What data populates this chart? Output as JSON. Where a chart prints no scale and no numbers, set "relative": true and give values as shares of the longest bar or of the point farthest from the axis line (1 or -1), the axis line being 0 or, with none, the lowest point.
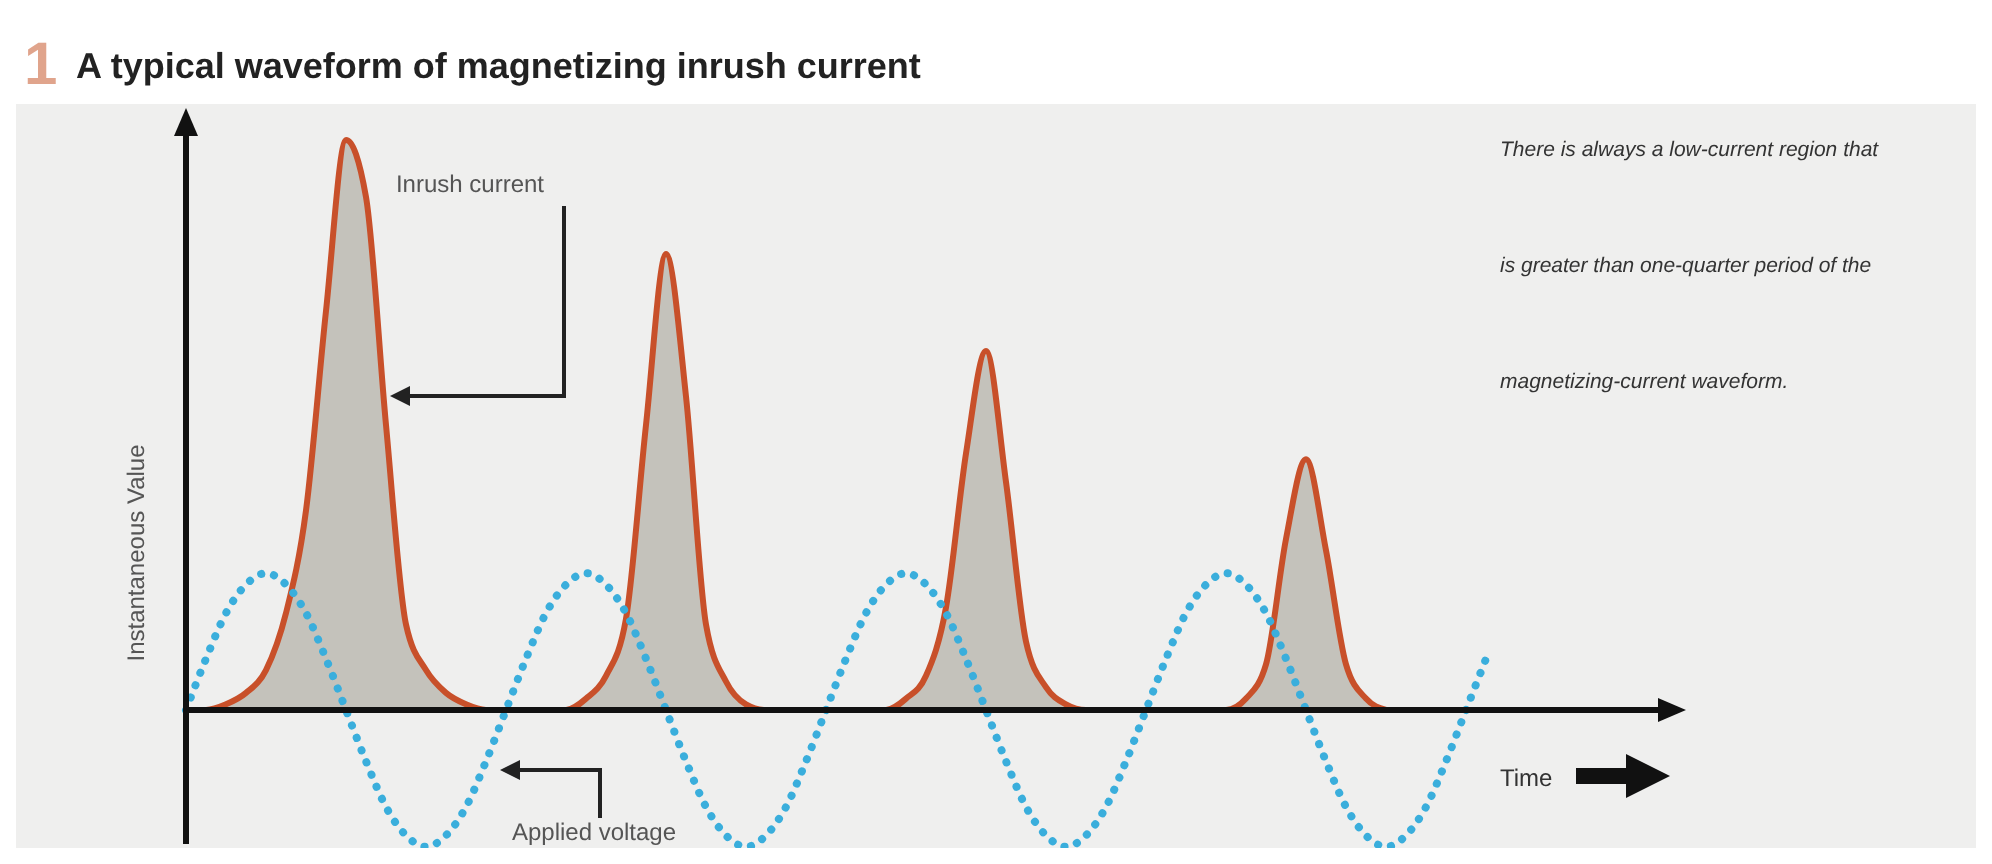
{
  "chart_data": {
    "type": "line",
    "relative": true,
    "title": "A typical waveform of magnetizing inrush current",
    "xlabel": "Time",
    "ylabel": "Instantaneous Value",
    "annotations": [
      "1",
      "There is always a low-current region that is greater than one-quarter period of the magnetizing-current waveform."
    ],
    "categories": [
      null,
      null,
      null,
      null,
      null,
      null,
      null,
      null,
      null,
      null,
      null,
      null,
      null,
      null,
      null,
      null,
      null,
      null,
      null,
      null,
      null,
      null,
      null,
      null,
      null,
      null,
      null,
      null,
      null,
      null,
      null,
      null,
      null,
      null,
      null,
      null,
      null,
      null,
      null,
      null,
      null,
      null,
      null,
      null,
      null,
      null,
      null,
      null,
      null,
      null,
      null,
      null,
      null,
      null,
      null,
      null,
      null,
      null,
      null,
      null,
      null,
      null,
      null,
      null,
      null,
      null,
      null,
      null,
      null,
      null,
      null,
      null,
      null,
      null,
      null
    ],
    "series": [
      {
        "name": "Inrush current",
        "type": "area",
        "color": "#c8502a",
        "values": [
          0,
          0,
          0.01,
          0.03,
          0.07,
          0.17,
          0.35,
          0.7,
          1,
          0.9,
          0.5,
          0.15,
          0.07,
          0.03,
          0.01,
          0,
          0,
          0,
          0,
          0,
          0.02,
          0.06,
          0.16,
          0.5,
          0.8,
          0.55,
          0.15,
          0.05,
          0.01,
          0,
          0,
          0,
          0,
          0,
          0,
          0,
          0.02,
          0.06,
          0.18,
          0.45,
          0.63,
          0.4,
          0.12,
          0.04,
          0.01,
          0,
          0,
          0,
          0,
          0,
          0,
          0,
          0,
          0.02,
          0.08,
          0.3,
          0.44,
          0.28,
          0.08,
          0.02,
          0,
          null,
          null,
          null,
          null,
          null,
          null,
          null,
          null,
          null,
          null,
          null,
          null,
          null,
          null
        ]
      },
      {
        "name": "Applied voltage",
        "line_style": "dotted",
        "color": "#3aaedc",
        "values": [
          0,
          0.09,
          0.17,
          0.22,
          0.24,
          0.22,
          0.17,
          0.09,
          0,
          -0.09,
          -0.17,
          -0.22,
          -0.24,
          -0.22,
          -0.17,
          -0.09,
          0,
          0.09,
          0.17,
          0.22,
          0.24,
          0.22,
          0.17,
          0.09,
          0,
          -0.09,
          -0.17,
          -0.22,
          -0.24,
          -0.22,
          -0.17,
          -0.09,
          0,
          0.09,
          0.17,
          0.22,
          0.24,
          0.22,
          0.17,
          0.09,
          0,
          -0.09,
          -0.17,
          -0.22,
          -0.24,
          -0.22,
          -0.17,
          -0.09,
          0,
          0.09,
          0.17,
          0.22,
          0.24,
          0.22,
          0.17,
          0.09,
          0,
          -0.09,
          -0.17,
          -0.22,
          -0.24,
          -0.22,
          -0.17,
          -0.09,
          0,
          0.09,
          null,
          null,
          null,
          null,
          null,
          null,
          null,
          null,
          null
        ]
      }
    ]
  }
}
